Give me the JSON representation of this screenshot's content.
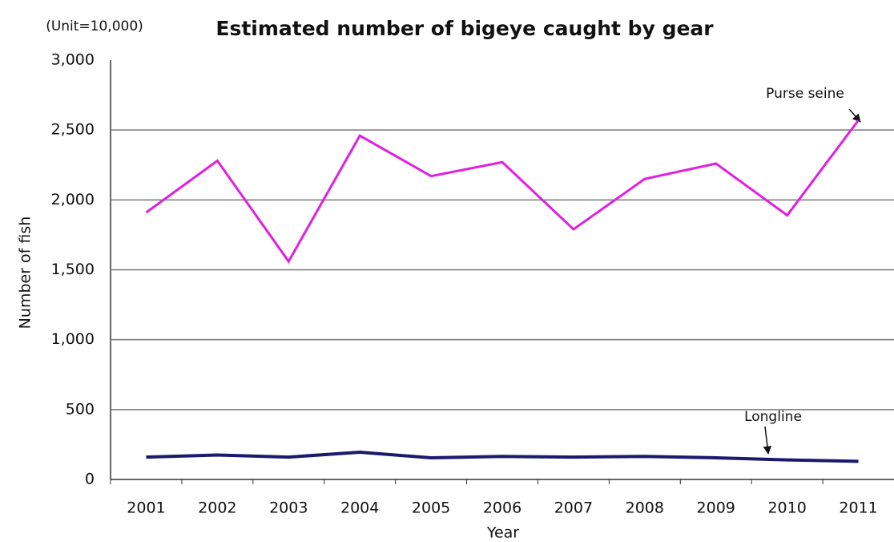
{
  "chart_data": {
    "type": "line",
    "title": "Estimated number of bigeye caught by gear",
    "unit_note": "(Unit=10,000)",
    "x_label": "Year",
    "y_label": "Number of fish",
    "categories": [
      "2001",
      "2002",
      "2003",
      "2004",
      "2005",
      "2006",
      "2007",
      "2008",
      "2009",
      "2010",
      "2011"
    ],
    "series": [
      {
        "name": "Purse seine",
        "color": "#e020e0",
        "values": [
          1910,
          2280,
          1560,
          2460,
          2170,
          2270,
          1790,
          2150,
          2260,
          1890,
          2570
        ]
      },
      {
        "name": "Longline",
        "color": "#1a1a6e",
        "values": [
          160,
          175,
          160,
          195,
          155,
          165,
          160,
          165,
          155,
          140,
          130
        ]
      }
    ],
    "ylim": [
      0,
      3000
    ],
    "yticks": [
      0,
      {
        "value": 500,
        "label": "500"
      },
      {
        "value": 1000,
        "label": "1,000"
      },
      {
        "value": 1500,
        "label": "1,500"
      },
      {
        "value": 2000,
        "label": "2,000"
      },
      {
        "value": 2500,
        "label": "2,500"
      },
      {
        "value": 3000,
        "label": "3,000"
      }
    ],
    "grid": true
  }
}
